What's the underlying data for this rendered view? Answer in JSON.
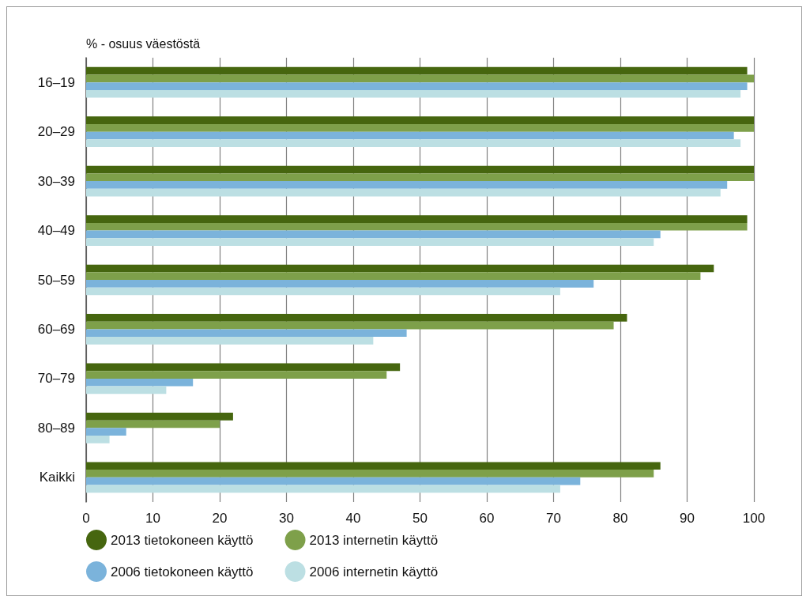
{
  "chart_data": {
    "type": "bar",
    "orientation": "horizontal",
    "ylabel": "% - osuus väestöstä",
    "categories": [
      "16–19",
      "20–29",
      "30–39",
      "40–49",
      "50–59",
      "60–69",
      "70–79",
      "80–89",
      "Kaikki"
    ],
    "series": [
      {
        "name": "2013 tietokoneen käyttö",
        "color": "#46660f",
        "values": [
          99,
          100,
          100,
          99,
          94,
          81,
          47,
          22,
          86
        ]
      },
      {
        "name": "2013 internetin käyttö",
        "color": "#7ea04a",
        "values": [
          100,
          100,
          100,
          99,
          92,
          79,
          45,
          20,
          85
        ]
      },
      {
        "name": "2006 tietokoneen käyttö",
        "color": "#7bb3db",
        "values": [
          99,
          97,
          96,
          86,
          76,
          48,
          16,
          6,
          74
        ]
      },
      {
        "name": "2006 internetin käyttö",
        "color": "#bcdfe3",
        "values": [
          98,
          98,
          95,
          85,
          71,
          43,
          12,
          3.5,
          71
        ]
      }
    ],
    "xlim": [
      0,
      100
    ],
    "xticks": [
      0,
      10,
      20,
      30,
      40,
      50,
      60,
      70,
      80,
      90,
      100
    ],
    "grid": "x",
    "legend": "bottom"
  }
}
